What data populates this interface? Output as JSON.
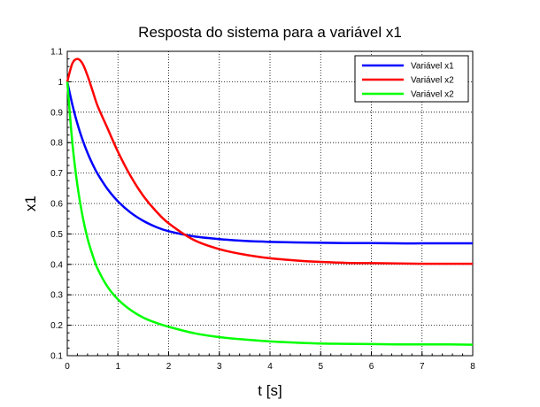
{
  "chart_data": {
    "type": "line",
    "title": "Resposta do sistema para a variável x1",
    "xlabel": "t [s]",
    "ylabel": "x1",
    "xlim": [
      0,
      8
    ],
    "ylim": [
      0.1,
      1.1
    ],
    "xticks": [
      "0",
      "1",
      "2",
      "3",
      "4",
      "5",
      "6",
      "7",
      "8"
    ],
    "yticks": [
      "0.1",
      "0.2",
      "0.3",
      "0.4",
      "0.5",
      "0.6",
      "0.7",
      "0.8",
      "0.9",
      "1",
      "1.1"
    ],
    "grid": true,
    "legend_position": "top-right",
    "x": [
      0,
      0.1,
      0.2,
      0.3,
      0.4,
      0.5,
      0.6,
      0.8,
      1.0,
      1.25,
      1.5,
      1.75,
      2.0,
      2.5,
      3.0,
      3.5,
      4.0,
      4.5,
      5.0,
      5.5,
      6.0,
      6.5,
      7.0,
      7.5,
      8.0
    ],
    "series": [
      {
        "name": "Variável x1",
        "color": "#0000ff",
        "values": [
          1.0,
          0.925,
          0.862,
          0.81,
          0.766,
          0.729,
          0.697,
          0.646,
          0.607,
          0.57,
          0.543,
          0.523,
          0.509,
          0.492,
          0.483,
          0.477,
          0.474,
          0.472,
          0.471,
          0.47,
          0.47,
          0.469,
          0.469,
          0.469,
          0.469
        ]
      },
      {
        "name": "Variável x2",
        "color": "#ff0000",
        "values": [
          1.0,
          1.06,
          1.075,
          1.06,
          1.02,
          0.97,
          0.92,
          0.845,
          0.77,
          0.69,
          0.625,
          0.575,
          0.535,
          0.48,
          0.45,
          0.432,
          0.42,
          0.413,
          0.408,
          0.405,
          0.404,
          0.403,
          0.402,
          0.402,
          0.402
        ]
      },
      {
        "name": "Variável x2",
        "color": "#00ff00",
        "values": [
          1.0,
          0.8,
          0.66,
          0.56,
          0.485,
          0.43,
          0.385,
          0.325,
          0.285,
          0.25,
          0.225,
          0.208,
          0.195,
          0.174,
          0.161,
          0.153,
          0.147,
          0.143,
          0.14,
          0.139,
          0.138,
          0.137,
          0.137,
          0.137,
          0.136
        ]
      }
    ]
  }
}
